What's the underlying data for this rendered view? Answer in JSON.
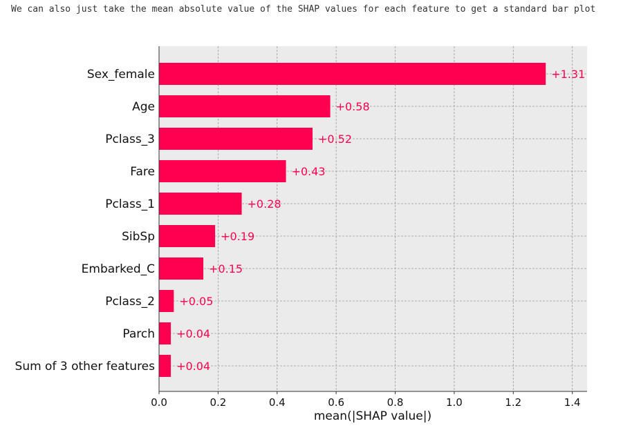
{
  "caption": "We can also just take the mean absolute value of the SHAP values for each feature to get a standard bar plot",
  "chart_data": {
    "type": "bar",
    "orientation": "horizontal",
    "categories": [
      "Sex_female",
      "Age",
      "Pclass_3",
      "Fare",
      "Pclass_1",
      "SibSp",
      "Embarked_C",
      "Pclass_2",
      "Parch",
      "Sum of 3 other features"
    ],
    "values": [
      1.31,
      0.58,
      0.52,
      0.43,
      0.28,
      0.19,
      0.15,
      0.05,
      0.04,
      0.04
    ],
    "data_labels": [
      "+1.31",
      "+0.58",
      "+0.52",
      "+0.43",
      "+0.28",
      "+0.19",
      "+0.15",
      "+0.05",
      "+0.04",
      "+0.04"
    ],
    "xlabel": "mean(|SHAP value|)",
    "xlim": [
      0,
      1.45
    ],
    "xticks": [
      0.0,
      0.2,
      0.4,
      0.6,
      0.8,
      1.0,
      1.2,
      1.4
    ],
    "xtick_labels": [
      "0.0",
      "0.2",
      "0.4",
      "0.6",
      "0.8",
      "1.0",
      "1.2",
      "1.4"
    ],
    "grid": true,
    "colors": {
      "bar": "#ff0051",
      "background": "#ebebeb",
      "grid": "#9a9a9a",
      "label": "#ff0051"
    }
  }
}
